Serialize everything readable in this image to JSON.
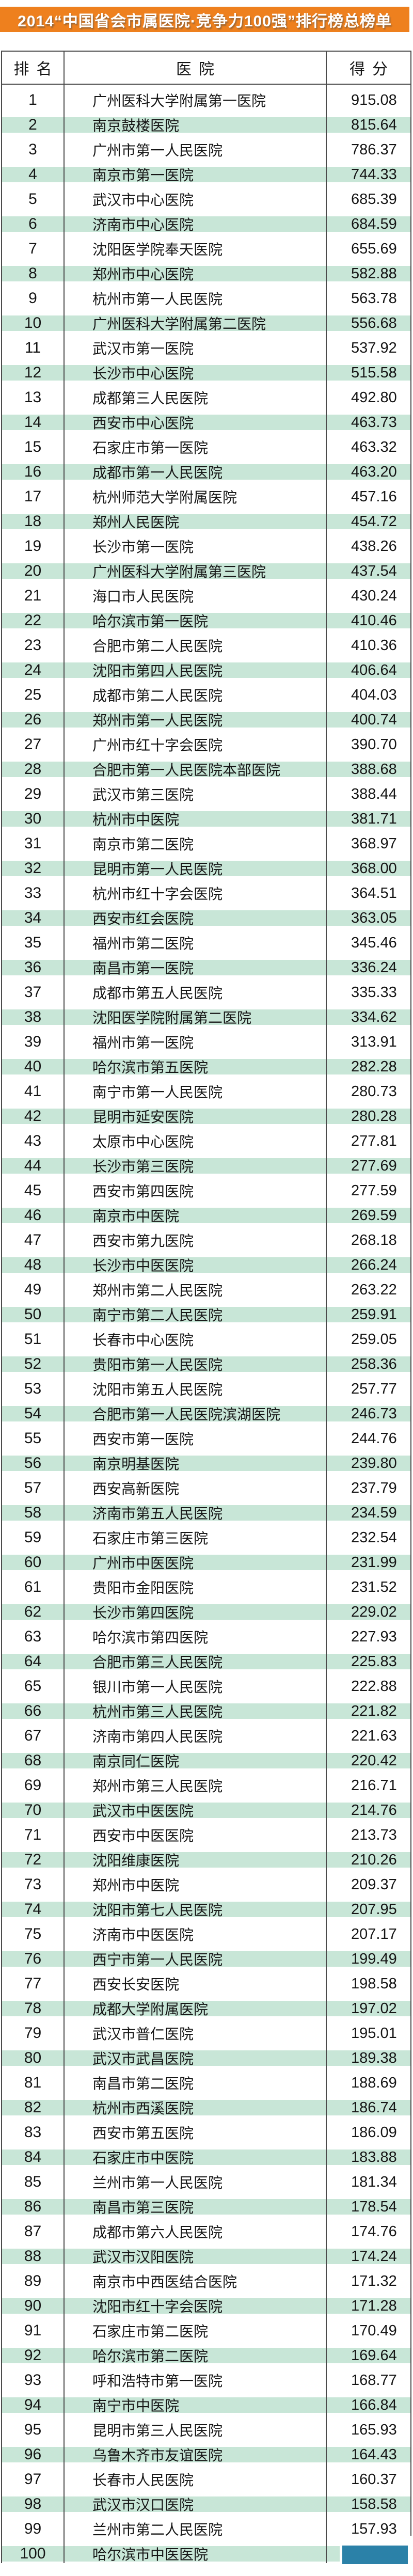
{
  "title": "2014“中国省会市属医院·竞争力100强”排行榜总榜单",
  "columns": {
    "rank": "排名",
    "hospital": "医院",
    "score": "得分"
  },
  "colors": {
    "banner_bg": "#ee801e",
    "stripe_green": "#c8e6d7",
    "mask_blue": "#2b81a8",
    "line_gray": "#4b4b4b",
    "text_dark": "#161616"
  },
  "rows": [
    {
      "rank": 1,
      "hospital": "广州医科大学附属第一医院",
      "score": "915.08"
    },
    {
      "rank": 2,
      "hospital": "南京鼓楼医院",
      "score": "815.64"
    },
    {
      "rank": 3,
      "hospital": "广州市第一人民医院",
      "score": "786.37"
    },
    {
      "rank": 4,
      "hospital": "南京市第一医院",
      "score": "744.33"
    },
    {
      "rank": 5,
      "hospital": "武汉市中心医院",
      "score": "685.39"
    },
    {
      "rank": 6,
      "hospital": "济南市中心医院",
      "score": "684.59"
    },
    {
      "rank": 7,
      "hospital": "沈阳医学院奉天医院",
      "score": "655.69"
    },
    {
      "rank": 8,
      "hospital": "郑州市中心医院",
      "score": "582.88"
    },
    {
      "rank": 9,
      "hospital": "杭州市第一人民医院",
      "score": "563.78"
    },
    {
      "rank": 10,
      "hospital": "广州医科大学附属第二医院",
      "score": "556.68"
    },
    {
      "rank": 11,
      "hospital": "武汉市第一医院",
      "score": "537.92"
    },
    {
      "rank": 12,
      "hospital": "长沙市中心医院",
      "score": "515.58"
    },
    {
      "rank": 13,
      "hospital": "成都第三人民医院",
      "score": "492.80"
    },
    {
      "rank": 14,
      "hospital": "西安市中心医院",
      "score": "463.73"
    },
    {
      "rank": 15,
      "hospital": "石家庄市第一医院",
      "score": "463.32"
    },
    {
      "rank": 16,
      "hospital": "成都市第一人民医院",
      "score": "463.20"
    },
    {
      "rank": 17,
      "hospital": "杭州师范大学附属医院",
      "score": "457.16"
    },
    {
      "rank": 18,
      "hospital": "郑州人民医院",
      "score": "454.72"
    },
    {
      "rank": 19,
      "hospital": "长沙市第一医院",
      "score": "438.26"
    },
    {
      "rank": 20,
      "hospital": "广州医科大学附属第三医院",
      "score": "437.54"
    },
    {
      "rank": 21,
      "hospital": "海口市人民医院",
      "score": "430.24"
    },
    {
      "rank": 22,
      "hospital": "哈尔滨市第一医院",
      "score": "410.46"
    },
    {
      "rank": 23,
      "hospital": "合肥市第二人民医院",
      "score": "410.36"
    },
    {
      "rank": 24,
      "hospital": "沈阳市第四人民医院",
      "score": "406.64"
    },
    {
      "rank": 25,
      "hospital": "成都市第二人民医院",
      "score": "404.03"
    },
    {
      "rank": 26,
      "hospital": "郑州市第一人民医院",
      "score": "400.74"
    },
    {
      "rank": 27,
      "hospital": "广州市红十字会医院",
      "score": "390.70"
    },
    {
      "rank": 28,
      "hospital": "合肥市第一人民医院本部医院",
      "score": "388.68"
    },
    {
      "rank": 29,
      "hospital": "武汉市第三医院",
      "score": "388.44"
    },
    {
      "rank": 30,
      "hospital": "杭州市中医院",
      "score": "381.71"
    },
    {
      "rank": 31,
      "hospital": "南京市第二医院",
      "score": "368.97"
    },
    {
      "rank": 32,
      "hospital": "昆明市第一人民医院",
      "score": "368.00"
    },
    {
      "rank": 33,
      "hospital": "杭州市红十字会医院",
      "score": "364.51"
    },
    {
      "rank": 34,
      "hospital": "西安市红会医院",
      "score": "363.05"
    },
    {
      "rank": 35,
      "hospital": "福州市第二医院",
      "score": "345.46"
    },
    {
      "rank": 36,
      "hospital": "南昌市第一医院",
      "score": "336.24"
    },
    {
      "rank": 37,
      "hospital": "成都市第五人民医院",
      "score": "335.33"
    },
    {
      "rank": 38,
      "hospital": "沈阳医学院附属第二医院",
      "score": "334.62"
    },
    {
      "rank": 39,
      "hospital": "福州市第一医院",
      "score": "313.91"
    },
    {
      "rank": 40,
      "hospital": "哈尔滨市第五医院",
      "score": "282.28"
    },
    {
      "rank": 41,
      "hospital": "南宁市第一人民医院",
      "score": "280.73"
    },
    {
      "rank": 42,
      "hospital": "昆明市延安医院",
      "score": "280.28"
    },
    {
      "rank": 43,
      "hospital": "太原市中心医院",
      "score": "277.81"
    },
    {
      "rank": 44,
      "hospital": "长沙市第三医院",
      "score": "277.69"
    },
    {
      "rank": 45,
      "hospital": "西安市第四医院",
      "score": "277.59"
    },
    {
      "rank": 46,
      "hospital": "南京市中医院",
      "score": "269.59"
    },
    {
      "rank": 47,
      "hospital": "西安市第九医院",
      "score": "268.18"
    },
    {
      "rank": 48,
      "hospital": "长沙市中医医院",
      "score": "266.24"
    },
    {
      "rank": 49,
      "hospital": "郑州市第二人民医院",
      "score": "263.22"
    },
    {
      "rank": 50,
      "hospital": "南宁市第二人民医院",
      "score": "259.91"
    },
    {
      "rank": 51,
      "hospital": "长春市中心医院",
      "score": "259.05"
    },
    {
      "rank": 52,
      "hospital": "贵阳市第一人民医院",
      "score": "258.36"
    },
    {
      "rank": 53,
      "hospital": "沈阳市第五人民医院",
      "score": "257.77"
    },
    {
      "rank": 54,
      "hospital": "合肥市第一人民医院滨湖医院",
      "score": "246.73"
    },
    {
      "rank": 55,
      "hospital": "西安市第一医院",
      "score": "244.76"
    },
    {
      "rank": 56,
      "hospital": "南京明基医院",
      "score": "239.80"
    },
    {
      "rank": 57,
      "hospital": "西安高新医院",
      "score": "237.79"
    },
    {
      "rank": 58,
      "hospital": "济南市第五人民医院",
      "score": "234.59"
    },
    {
      "rank": 59,
      "hospital": "石家庄市第三医院",
      "score": "232.54"
    },
    {
      "rank": 60,
      "hospital": "广州市中医医院",
      "score": "231.99"
    },
    {
      "rank": 61,
      "hospital": "贵阳市金阳医院",
      "score": "231.52"
    },
    {
      "rank": 62,
      "hospital": "长沙市第四医院",
      "score": "229.02"
    },
    {
      "rank": 63,
      "hospital": "哈尔滨市第四医院",
      "score": "227.93"
    },
    {
      "rank": 64,
      "hospital": "合肥市第三人民医院",
      "score": "225.83"
    },
    {
      "rank": 65,
      "hospital": "银川市第一人民医院",
      "score": "222.88"
    },
    {
      "rank": 66,
      "hospital": "杭州市第三人民医院",
      "score": "221.82"
    },
    {
      "rank": 67,
      "hospital": "济南市第四人民医院",
      "score": "221.63"
    },
    {
      "rank": 68,
      "hospital": "南京同仁医院",
      "score": "220.42"
    },
    {
      "rank": 69,
      "hospital": "郑州市第三人民医院",
      "score": "216.71"
    },
    {
      "rank": 70,
      "hospital": "武汉市中医医院",
      "score": "214.76"
    },
    {
      "rank": 71,
      "hospital": "西安市中医医院",
      "score": "213.73"
    },
    {
      "rank": 72,
      "hospital": "沈阳维康医院",
      "score": "210.26"
    },
    {
      "rank": 73,
      "hospital": "郑州市中医院",
      "score": "209.37"
    },
    {
      "rank": 74,
      "hospital": "沈阳市第七人民医院",
      "score": "207.95"
    },
    {
      "rank": 75,
      "hospital": "济南市中医医院",
      "score": "207.17"
    },
    {
      "rank": 76,
      "hospital": "西宁市第一人民医院",
      "score": "199.49"
    },
    {
      "rank": 77,
      "hospital": "西安长安医院",
      "score": "198.58"
    },
    {
      "rank": 78,
      "hospital": "成都大学附属医院",
      "score": "197.02"
    },
    {
      "rank": 79,
      "hospital": "武汉市普仁医院",
      "score": "195.01"
    },
    {
      "rank": 80,
      "hospital": "武汉市武昌医院",
      "score": "189.38"
    },
    {
      "rank": 81,
      "hospital": "南昌市第二医院",
      "score": "188.69"
    },
    {
      "rank": 82,
      "hospital": "杭州市西溪医院",
      "score": "186.74"
    },
    {
      "rank": 83,
      "hospital": "西安市第五医院",
      "score": "186.09"
    },
    {
      "rank": 84,
      "hospital": "石家庄市中医院",
      "score": "183.88"
    },
    {
      "rank": 85,
      "hospital": "兰州市第一人民医院",
      "score": "181.34"
    },
    {
      "rank": 86,
      "hospital": "南昌市第三医院",
      "score": "178.54"
    },
    {
      "rank": 87,
      "hospital": "成都市第六人民医院",
      "score": "174.76"
    },
    {
      "rank": 88,
      "hospital": "武汉市汉阳医院",
      "score": "174.24"
    },
    {
      "rank": 89,
      "hospital": "南京市中西医结合医院",
      "score": "171.32"
    },
    {
      "rank": 90,
      "hospital": "沈阳市红十字会医院",
      "score": "171.28"
    },
    {
      "rank": 91,
      "hospital": "石家庄市第二医院",
      "score": "170.49"
    },
    {
      "rank": 92,
      "hospital": "哈尔滨市第二医院",
      "score": "169.64"
    },
    {
      "rank": 93,
      "hospital": "呼和浩特市第一医院",
      "score": "168.77"
    },
    {
      "rank": 94,
      "hospital": "南宁市中医院",
      "score": "166.84"
    },
    {
      "rank": 95,
      "hospital": "昆明市第三人民医院",
      "score": "165.93"
    },
    {
      "rank": 96,
      "hospital": "乌鲁木齐市友谊医院",
      "score": "164.43"
    },
    {
      "rank": 97,
      "hospital": "长春市人民医院",
      "score": "160.37"
    },
    {
      "rank": 98,
      "hospital": "武汉市汉口医院",
      "score": "158.58"
    },
    {
      "rank": 99,
      "hospital": "兰州市第二人民医院",
      "score": "157.93"
    },
    {
      "rank": 100,
      "hospital": "哈尔滨市中医医院",
      "score": ""
    }
  ]
}
